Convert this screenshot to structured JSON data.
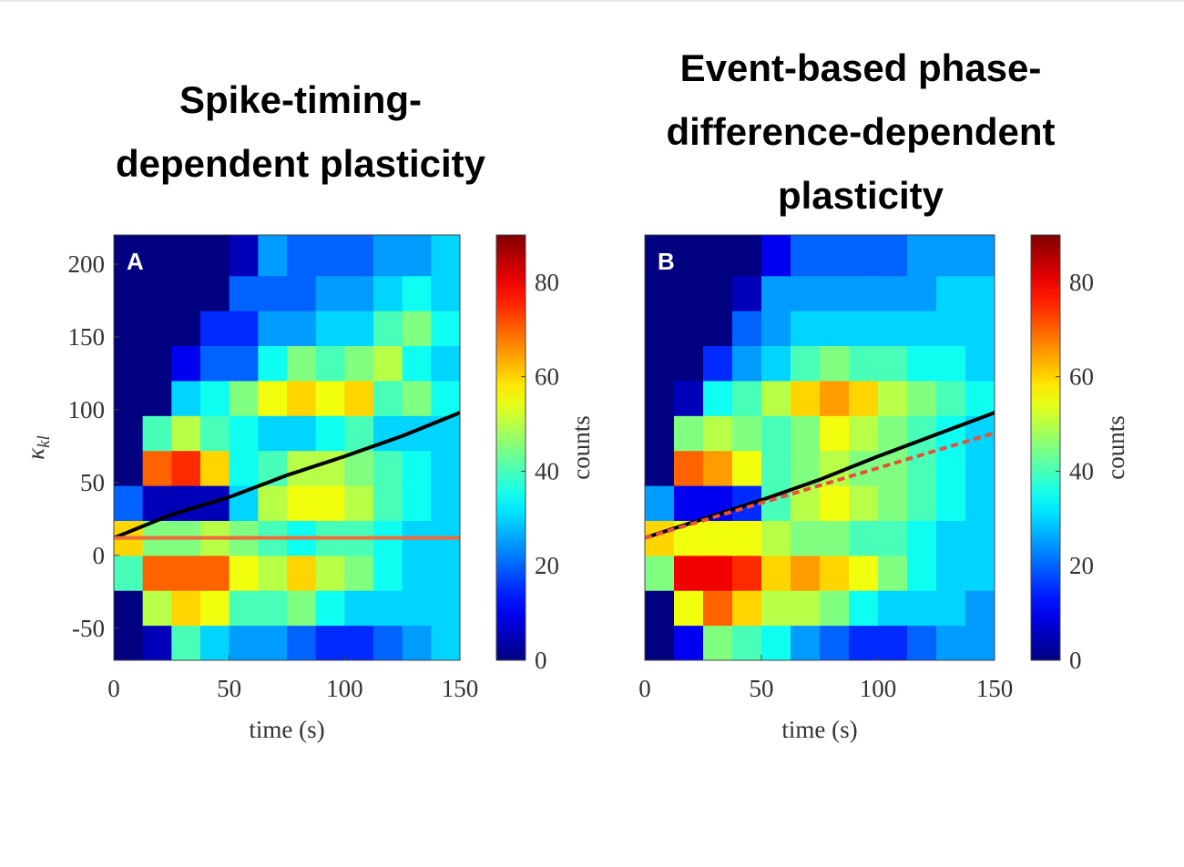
{
  "chart_data": [
    {
      "type": "heatmap",
      "title": [
        "Spike-timing-",
        "dependent plasticity"
      ],
      "panel": "A",
      "xlabel": "time (s)",
      "ylabel": "κ",
      "ylabel_subscript": "kl",
      "clabel": "counts",
      "xlim": [
        0,
        150
      ],
      "ylim": [
        -72,
        220
      ],
      "clim": [
        0,
        90
      ],
      "xticks": [
        0,
        50,
        100,
        150
      ],
      "yticks": [
        200,
        150,
        100,
        50,
        0,
        -50
      ],
      "cticks": [
        0,
        20,
        40,
        60,
        80
      ],
      "x": [
        0,
        12.5,
        25,
        37.5,
        50,
        62.5,
        75,
        87.5,
        100,
        112.5,
        125,
        137.5,
        150
      ],
      "y": [
        -72,
        -48,
        -24,
        0,
        24,
        48,
        72,
        96,
        120,
        144,
        168,
        192,
        220
      ],
      "z": [
        [
          0,
          5,
          40,
          30,
          25,
          25,
          20,
          15,
          15,
          20,
          25,
          30
        ],
        [
          0,
          50,
          60,
          55,
          40,
          40,
          45,
          35,
          30,
          30,
          30,
          30
        ],
        [
          40,
          70,
          70,
          70,
          55,
          50,
          60,
          50,
          45,
          35,
          30,
          30
        ],
        [
          60,
          45,
          45,
          50,
          45,
          40,
          35,
          40,
          40,
          35,
          30,
          30
        ],
        [
          20,
          5,
          5,
          5,
          30,
          50,
          55,
          55,
          50,
          40,
          35,
          30
        ],
        [
          0,
          70,
          75,
          60,
          35,
          40,
          50,
          50,
          45,
          40,
          35,
          30
        ],
        [
          0,
          40,
          50,
          40,
          35,
          30,
          30,
          35,
          40,
          30,
          30,
          30
        ],
        [
          0,
          0,
          30,
          35,
          45,
          55,
          60,
          55,
          60,
          40,
          45,
          35
        ],
        [
          0,
          0,
          10,
          20,
          20,
          35,
          45,
          40,
          45,
          50,
          35,
          30
        ],
        [
          0,
          0,
          0,
          15,
          15,
          25,
          25,
          30,
          30,
          40,
          45,
          35
        ],
        [
          0,
          0,
          0,
          0,
          20,
          20,
          20,
          25,
          25,
          30,
          35,
          30
        ],
        [
          0,
          0,
          0,
          0,
          5,
          25,
          20,
          20,
          20,
          25,
          25,
          30
        ]
      ],
      "lines": [
        {
          "color": "#000000",
          "linestyle": "solid",
          "x": [
            0,
            25,
            50,
            75,
            100,
            125,
            150
          ],
          "values": [
            12,
            28,
            40,
            55,
            68,
            82,
            98
          ]
        },
        {
          "color": "#f06a3a",
          "linestyle": "solid",
          "x": [
            0,
            150
          ],
          "values": [
            12,
            12
          ]
        }
      ]
    },
    {
      "type": "heatmap",
      "title": [
        "Event-based phase-",
        "difference-dependent",
        "plasticity"
      ],
      "panel": "B",
      "xlabel": "time (s)",
      "clabel": "counts",
      "xlim": [
        0,
        150
      ],
      "ylim": [
        -72,
        220
      ],
      "clim": [
        0,
        90
      ],
      "xticks": [
        0,
        50,
        100,
        150
      ],
      "cticks": [
        0,
        20,
        40,
        60,
        80
      ],
      "x": [
        0,
        12.5,
        25,
        37.5,
        50,
        62.5,
        75,
        87.5,
        100,
        112.5,
        125,
        137.5,
        150
      ],
      "y": [
        -72,
        -48,
        -24,
        0,
        24,
        48,
        72,
        96,
        120,
        144,
        168,
        192,
        220
      ],
      "z": [
        [
          0,
          10,
          45,
          40,
          35,
          25,
          20,
          15,
          15,
          20,
          25,
          25
        ],
        [
          0,
          55,
          70,
          60,
          50,
          50,
          45,
          35,
          30,
          30,
          30,
          25
        ],
        [
          45,
          80,
          80,
          75,
          60,
          65,
          60,
          55,
          45,
          35,
          30,
          30
        ],
        [
          60,
          55,
          55,
          55,
          50,
          45,
          45,
          40,
          40,
          35,
          30,
          30
        ],
        [
          25,
          10,
          10,
          15,
          40,
          50,
          55,
          50,
          45,
          40,
          35,
          30
        ],
        [
          0,
          70,
          65,
          55,
          40,
          45,
          50,
          45,
          45,
          40,
          35,
          30
        ],
        [
          0,
          45,
          50,
          45,
          40,
          45,
          55,
          50,
          45,
          40,
          35,
          30
        ],
        [
          0,
          5,
          35,
          40,
          50,
          60,
          65,
          60,
          50,
          45,
          40,
          35
        ],
        [
          0,
          0,
          15,
          25,
          30,
          40,
          45,
          40,
          40,
          35,
          35,
          30
        ],
        [
          0,
          0,
          0,
          20,
          25,
          30,
          30,
          30,
          30,
          30,
          30,
          30
        ],
        [
          0,
          0,
          0,
          5,
          25,
          25,
          25,
          25,
          25,
          25,
          30,
          30
        ],
        [
          0,
          0,
          0,
          0,
          10,
          20,
          20,
          20,
          20,
          25,
          25,
          25
        ]
      ],
      "lines": [
        {
          "color": "#000000",
          "linestyle": "solid",
          "x": [
            0,
            25,
            50,
            75,
            100,
            125,
            150
          ],
          "values": [
            12,
            25,
            38,
            52,
            68,
            83,
            98
          ]
        },
        {
          "color": "#e8503a",
          "linestyle": "dashed",
          "x": [
            0,
            150
          ],
          "values": [
            12,
            84
          ]
        }
      ]
    }
  ]
}
